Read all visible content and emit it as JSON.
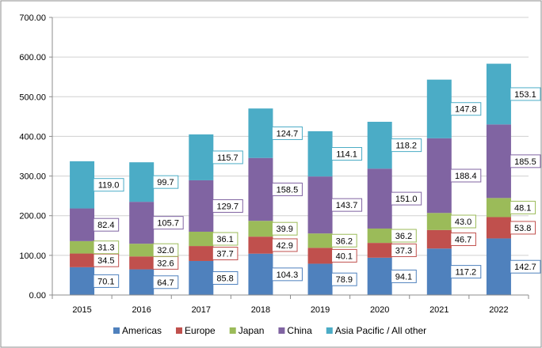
{
  "chart_data": {
    "type": "bar",
    "stacked": true,
    "categories": [
      "2015",
      "2016",
      "2017",
      "2018",
      "2019",
      "2020",
      "2021",
      "2022"
    ],
    "series": [
      {
        "name": "Americas",
        "color": "#4F81BD",
        "values": [
          70.1,
          64.7,
          85.8,
          104.3,
          78.9,
          94.1,
          117.2,
          142.7
        ]
      },
      {
        "name": "Europe",
        "color": "#C0504D",
        "values": [
          34.5,
          32.6,
          37.7,
          42.9,
          40.1,
          37.3,
          46.7,
          53.8
        ]
      },
      {
        "name": "Japan",
        "color": "#9BBB59",
        "values": [
          31.3,
          32.0,
          36.1,
          39.9,
          36.2,
          36.2,
          43.0,
          48.1
        ]
      },
      {
        "name": "China",
        "color": "#8064A2",
        "values": [
          82.4,
          105.7,
          129.7,
          158.5,
          143.7,
          151.0,
          188.4,
          185.5
        ]
      },
      {
        "name": "Asia Pacific / All other",
        "color": "#4BACC6",
        "values": [
          119.0,
          99.7,
          115.7,
          124.7,
          114.1,
          118.2,
          147.8,
          153.1
        ]
      }
    ],
    "data_labels": [
      [
        "70.1",
        "64.7",
        "85.8",
        "104.3",
        "78.9",
        "94.1",
        "117.2",
        "142.7"
      ],
      [
        "34.5",
        "32.6",
        "37.7",
        "42.9",
        "40.1",
        "37.3",
        "46.7",
        "53.8"
      ],
      [
        "31.3",
        "32.0",
        "36.1",
        "39.9",
        "36.2",
        "36.2",
        "43.0",
        "48.1"
      ],
      [
        "82.4",
        "105.7",
        "129.7",
        "158.5",
        "143.7",
        "151.0",
        "188.4",
        "185.5"
      ],
      [
        "119.0",
        "99.7",
        "115.7",
        "124.7",
        "114.1",
        "118.2",
        "147.8",
        "153.1"
      ]
    ],
    "ylim": [
      0,
      700
    ],
    "yticks": [
      "0.00",
      "100.00",
      "200.00",
      "300.00",
      "400.00",
      "500.00",
      "600.00",
      "700.00"
    ],
    "grid": true,
    "legend_position": "bottom",
    "title": "",
    "xlabel": "",
    "ylabel": ""
  }
}
